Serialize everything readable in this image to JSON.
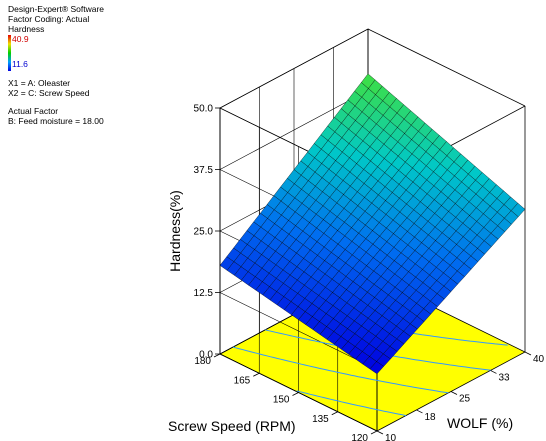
{
  "info": {
    "software": "Design-Expert® Software",
    "coding": "Factor Coding: Actual",
    "response": "Hardness",
    "legend_max": "40.9",
    "legend_min": "11.6",
    "x1": "X1 = A: Oleaster",
    "x2": "X2 = C: Screw Speed",
    "actual_factor_title": "Actual Factor",
    "actual_factor": "B: Feed moisture = 18.00"
  },
  "chart_data": {
    "type": "surface",
    "title": "",
    "zlabel": "Hardness(%)",
    "xlabel": "WOLF (%)",
    "ylabel": "Screw Speed (RPM)",
    "x_ticks": [
      "10",
      "18",
      "25",
      "33",
      "40"
    ],
    "y_ticks": [
      "120",
      "135",
      "150",
      "165",
      "180"
    ],
    "z_ticks": [
      "0.0",
      "12.5",
      "25.0",
      "37.5",
      "50.0"
    ],
    "xlim": [
      10,
      40
    ],
    "ylim": [
      120,
      180
    ],
    "zlim": [
      0,
      50
    ],
    "surface_corners": {
      "wolf10_rpm120": 11.6,
      "wolf10_rpm180": 18.0,
      "wolf40_rpm120": 29.0,
      "wolf40_rpm180": 40.9
    },
    "colors": {
      "floor": "#ffff00",
      "low": "#0000e0",
      "high": "#40e040",
      "contour": "#3399ff"
    }
  }
}
